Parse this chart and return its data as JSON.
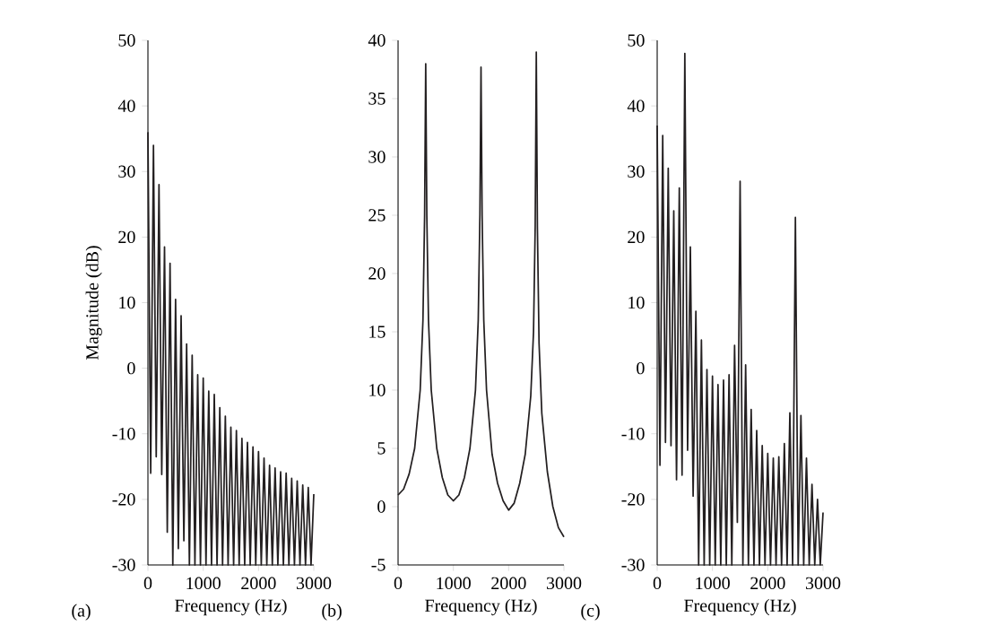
{
  "chart_data": [
    {
      "type": "line",
      "xlabel": "Frequency (Hz)",
      "ylabel": "Magnitude (dB)",
      "annotations": [
        "(a)"
      ],
      "color": "#231f20",
      "xlim": [
        0,
        3000
      ],
      "ylim": [
        -30,
        50
      ],
      "xticks": [
        0,
        1000,
        2000,
        3000
      ],
      "yticks": [
        -30,
        -20,
        -10,
        0,
        10,
        20,
        30,
        40,
        50
      ],
      "x": [
        0,
        50,
        100,
        150,
        200,
        250,
        300,
        350,
        400,
        450,
        500,
        550,
        600,
        650,
        700,
        750,
        800,
        850,
        900,
        950,
        1000,
        1050,
        1100,
        1150,
        1200,
        1250,
        1300,
        1350,
        1400,
        1450,
        1500,
        1550,
        1600,
        1650,
        1700,
        1750,
        1800,
        1850,
        1900,
        1950,
        2000,
        2050,
        2100,
        2150,
        2200,
        2250,
        2300,
        2350,
        2400,
        2450,
        2500,
        2550,
        2600,
        2650,
        2700,
        2750,
        2800,
        2850,
        2900,
        2950,
        3000
      ],
      "values": [
        36,
        -16,
        34,
        -13.5,
        28,
        -16.2,
        18.5,
        -25,
        16,
        -30,
        10.5,
        -27.5,
        8,
        -26.3,
        3.7,
        -30,
        2,
        -30,
        -1,
        -30,
        -1.5,
        -30,
        -3.5,
        -30,
        -4,
        -30,
        -6,
        -30,
        -7.3,
        -30,
        -9,
        -30,
        -9.5,
        -30,
        -10.7,
        -30,
        -11.3,
        -30,
        -12,
        -30,
        -12.7,
        -30,
        -13.7,
        -30,
        -14.8,
        -30,
        -15.2,
        -30,
        -15.8,
        -30,
        -16,
        -30,
        -16.8,
        -30,
        -17.2,
        -30,
        -17.8,
        -30,
        -18.2,
        -30,
        -19.2
      ]
    },
    {
      "type": "line",
      "xlabel": "Frequency (Hz)",
      "annotations": [
        "(b)"
      ],
      "color": "#231f20",
      "xlim": [
        0,
        3000
      ],
      "ylim": [
        -5,
        40
      ],
      "xticks": [
        0,
        1000,
        2000,
        3000
      ],
      "yticks": [
        -5,
        0,
        5,
        10,
        15,
        20,
        25,
        30,
        35,
        40
      ],
      "x": [
        0,
        100,
        200,
        300,
        400,
        450,
        480,
        500,
        520,
        550,
        600,
        700,
        800,
        900,
        1000,
        1100,
        1200,
        1300,
        1400,
        1450,
        1480,
        1500,
        1520,
        1550,
        1600,
        1700,
        1800,
        1900,
        2000,
        2100,
        2200,
        2300,
        2400,
        2450,
        2480,
        2500,
        2520,
        2550,
        2600,
        2700,
        2800,
        2900,
        3000
      ],
      "values": [
        1,
        1.5,
        2.8,
        5,
        10,
        16,
        25,
        38,
        25,
        16,
        10,
        5,
        2.5,
        1,
        0.5,
        1,
        2.5,
        5,
        10,
        16,
        25,
        37.7,
        25,
        16,
        10,
        4.5,
        2,
        0.5,
        -0.3,
        0.3,
        2,
        4.5,
        9.5,
        15,
        24,
        39,
        24,
        14,
        8,
        3,
        0,
        -1.8,
        -2.6
      ]
    },
    {
      "type": "line",
      "xlabel": "Frequency (Hz)",
      "annotations": [
        "(c)"
      ],
      "color": "#231f20",
      "xlim": [
        0,
        3000
      ],
      "ylim": [
        -30,
        50
      ],
      "xticks": [
        0,
        1000,
        2000,
        3000
      ],
      "yticks": [
        -30,
        -20,
        -10,
        0,
        10,
        20,
        30,
        40,
        50
      ],
      "x": [
        0,
        50,
        100,
        150,
        200,
        250,
        300,
        350,
        400,
        450,
        500,
        550,
        600,
        650,
        700,
        750,
        800,
        850,
        900,
        950,
        1000,
        1050,
        1100,
        1150,
        1200,
        1250,
        1300,
        1350,
        1400,
        1450,
        1500,
        1550,
        1600,
        1650,
        1700,
        1750,
        1800,
        1850,
        1900,
        1950,
        2000,
        2050,
        2100,
        2150,
        2200,
        2250,
        2300,
        2350,
        2400,
        2450,
        2500,
        2550,
        2600,
        2650,
        2700,
        2750,
        2800,
        2850,
        2900,
        2950,
        3000
      ],
      "values": [
        37,
        -14.8,
        35.5,
        -11.3,
        30.5,
        -11.8,
        24,
        -17,
        27.5,
        -16.3,
        48,
        -12.5,
        18.5,
        -19.5,
        8.7,
        -30,
        4.3,
        -30,
        -0.2,
        -30,
        -1.2,
        -30,
        -2.5,
        -30,
        -1.8,
        -30,
        -1,
        -30,
        3.5,
        -23.5,
        28.5,
        -30,
        0.5,
        -30,
        -6.3,
        -30,
        -9.5,
        -30,
        -11.8,
        -30,
        -13,
        -30,
        -13.7,
        -30,
        -13.5,
        -30,
        -11.5,
        -30,
        -6.8,
        -30,
        23,
        -30,
        -7.2,
        -30,
        -13.7,
        -30,
        -17.7,
        -30,
        -20,
        -30,
        -22
      ]
    }
  ]
}
